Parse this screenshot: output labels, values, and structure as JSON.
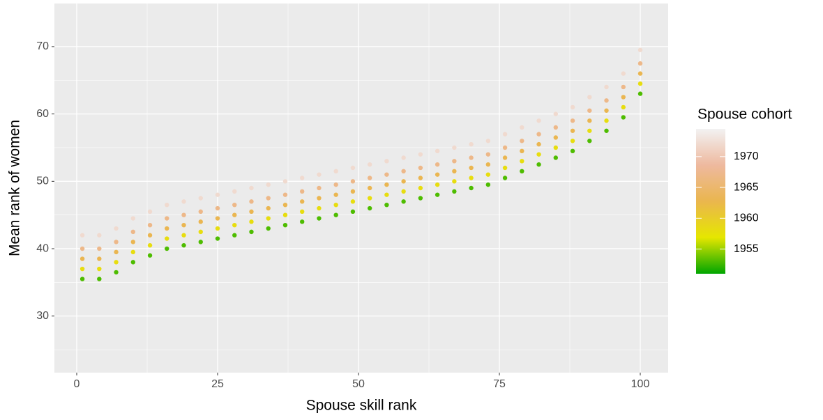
{
  "chart_data": {
    "type": "scatter",
    "x_label": "Spouse skill rank",
    "y_label": "Mean rank of women",
    "xlim": [
      -3.96,
      104.95
    ],
    "ylim": [
      21.6,
      76.4
    ],
    "xticks": [
      0,
      25,
      50,
      75,
      100
    ],
    "yticks": [
      30,
      40,
      50,
      60,
      70
    ],
    "grid": true,
    "minor_grid": true,
    "legend_title": "Spouse cohort",
    "legend_position": "right",
    "color_scale": {
      "lim": [
        1951,
        1974.5
      ],
      "ticks": [
        1955,
        1960,
        1965,
        1970
      ],
      "colors": [
        "#00A600",
        "#E6E600",
        "#EAB64E",
        "#EEB99F",
        "#F2F2F2"
      ]
    },
    "x": [
      1,
      4,
      7,
      10,
      13,
      16,
      19,
      22,
      25,
      28,
      31,
      34,
      37,
      40,
      43,
      46,
      49,
      52,
      55,
      58,
      61,
      64,
      67,
      70,
      73,
      76,
      79,
      82,
      85,
      88,
      91,
      94,
      97,
      100
    ],
    "series": [
      {
        "cohort": 1953,
        "values": [
          35.5,
          35.5,
          36.5,
          38,
          39,
          40,
          40.5,
          41,
          41.5,
          42,
          42.5,
          43,
          43.5,
          44,
          44.5,
          45,
          45.5,
          46,
          46.5,
          47,
          47.5,
          48,
          48.5,
          49,
          49.5,
          50.5,
          51.5,
          52.5,
          53.5,
          54.5,
          56,
          57.5,
          59.5,
          63
        ]
      },
      {
        "cohort": 1958,
        "values": [
          37,
          37,
          38,
          39.5,
          40.5,
          41.5,
          42,
          42.5,
          43,
          43.5,
          44,
          44.5,
          45,
          45.5,
          46,
          46.5,
          47,
          47.5,
          48,
          48.5,
          49,
          49.5,
          50,
          50.5,
          51,
          52,
          53,
          54,
          55,
          56,
          57.5,
          59,
          61,
          64.5
        ]
      },
      {
        "cohort": 1963,
        "values": [
          38.5,
          38.5,
          39.5,
          41,
          42,
          43,
          43.5,
          44,
          44.5,
          45,
          45.5,
          46,
          46.5,
          47,
          47.5,
          48,
          48.5,
          49,
          49.5,
          50,
          50.5,
          51,
          51.5,
          52,
          52.5,
          53.5,
          54.5,
          55.5,
          56.5,
          57.5,
          59,
          60.5,
          62.5,
          66
        ]
      },
      {
        "cohort": 1967,
        "values": [
          40,
          40,
          41,
          42.5,
          43.5,
          44.5,
          45,
          45.5,
          46,
          46.5,
          47,
          47.5,
          48,
          48.5,
          49,
          49.5,
          50,
          50.5,
          51,
          51.5,
          52,
          52.5,
          53,
          53.5,
          54,
          55,
          56,
          57,
          58,
          59,
          60.5,
          62,
          64,
          67.5
        ]
      },
      {
        "cohort": 1972,
        "values": [
          42,
          42,
          43,
          44.5,
          45.5,
          46.5,
          47,
          47.5,
          48,
          48.5,
          49,
          49.5,
          50,
          50.5,
          51,
          51.5,
          52,
          52.5,
          53,
          53.5,
          54,
          54.5,
          55,
          55.5,
          56,
          57,
          58,
          59,
          60,
          61,
          62.5,
          64,
          66,
          69.5
        ]
      }
    ]
  }
}
